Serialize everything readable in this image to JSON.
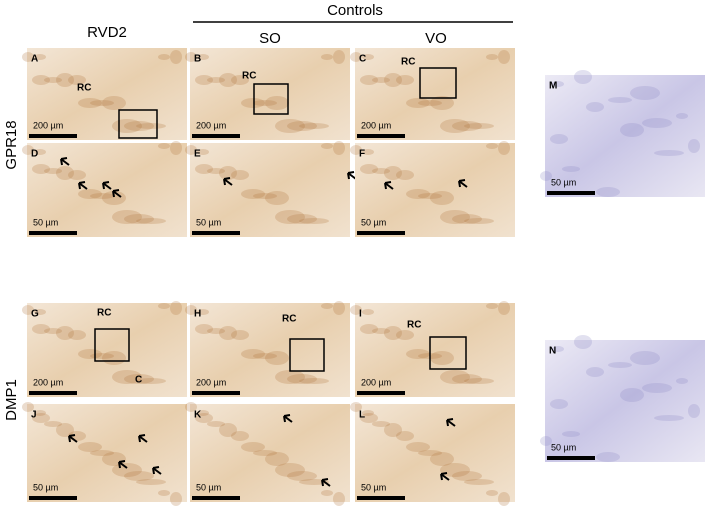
{
  "header": {
    "group_label": "Controls",
    "columns": [
      "RVD2",
      "SO",
      "VO"
    ]
  },
  "rows": [
    "GPR18",
    "DMP1"
  ],
  "panels": [
    {
      "letter": "A",
      "labels": [
        "RC"
      ],
      "scale_bar": "200 µm"
    },
    {
      "letter": "B",
      "labels": [
        "RC"
      ],
      "scale_bar": "200 µm"
    },
    {
      "letter": "C",
      "labels": [
        "RC"
      ],
      "scale_bar": "200 µm"
    },
    {
      "letter": "D",
      "scale_bar": "50 µm"
    },
    {
      "letter": "E",
      "scale_bar": "50 µm"
    },
    {
      "letter": "F",
      "scale_bar": "50 µm"
    },
    {
      "letter": "M",
      "scale_bar": "50 µm"
    },
    {
      "letter": "G",
      "labels": [
        "RC",
        "C"
      ],
      "scale_bar": "200 µm"
    },
    {
      "letter": "H",
      "labels": [
        "RC"
      ],
      "scale_bar": "200 µm"
    },
    {
      "letter": "I",
      "labels": [
        "RC"
      ],
      "scale_bar": "200 µm"
    },
    {
      "letter": "J",
      "scale_bar": "50 µm"
    },
    {
      "letter": "K",
      "scale_bar": "50 µm"
    },
    {
      "letter": "L",
      "scale_bar": "50 µm"
    },
    {
      "letter": "N",
      "scale_bar": "50 µm"
    }
  ]
}
